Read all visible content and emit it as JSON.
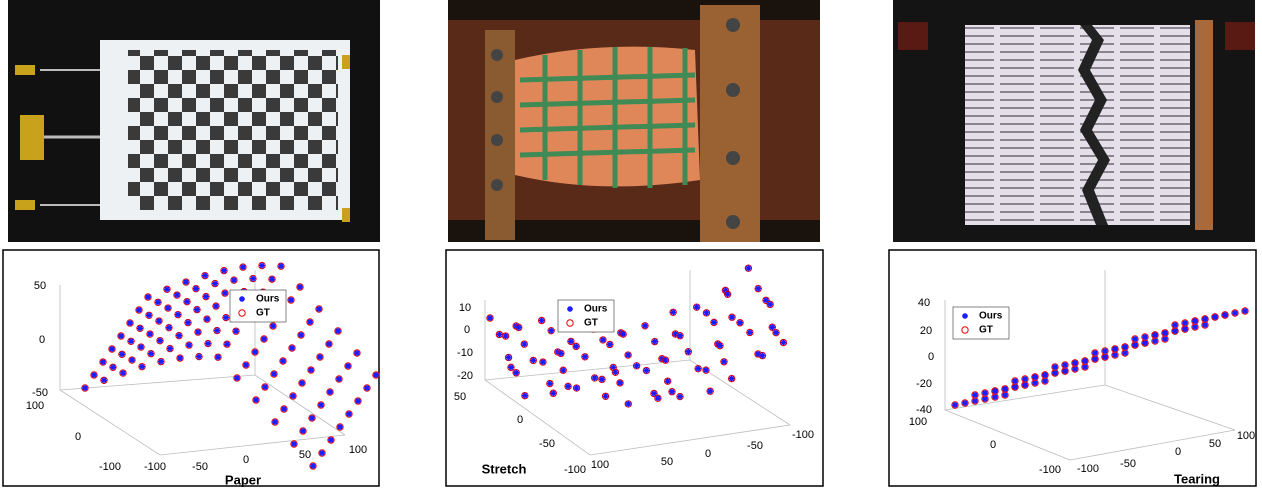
{
  "plots": [
    {
      "label": "Paper",
      "legend": [
        "Ours",
        "GT"
      ],
      "zticks": [
        "50",
        "0",
        "-50"
      ],
      "yticks": [
        "100",
        "0",
        "-100"
      ],
      "xticks": [
        "-100",
        "-50",
        "0",
        "50",
        "100"
      ]
    },
    {
      "label": "Stretch",
      "legend": [
        "Ours",
        "GT"
      ],
      "zticks": [
        "10",
        "0",
        "-10",
        "-20"
      ],
      "yticks": [
        "50",
        "0",
        "-50",
        "-100"
      ],
      "xticks": [
        "100",
        "50",
        "0",
        "-50",
        "-100"
      ]
    },
    {
      "label": "Tearing",
      "legend": [
        "Ours",
        "GT"
      ],
      "zticks": [
        "40",
        "20",
        "0",
        "-20",
        "-40"
      ],
      "yticks": [
        "100",
        "0",
        "-100"
      ],
      "xticks": [
        "-100",
        "-50",
        "0",
        "50",
        "100"
      ]
    }
  ]
}
